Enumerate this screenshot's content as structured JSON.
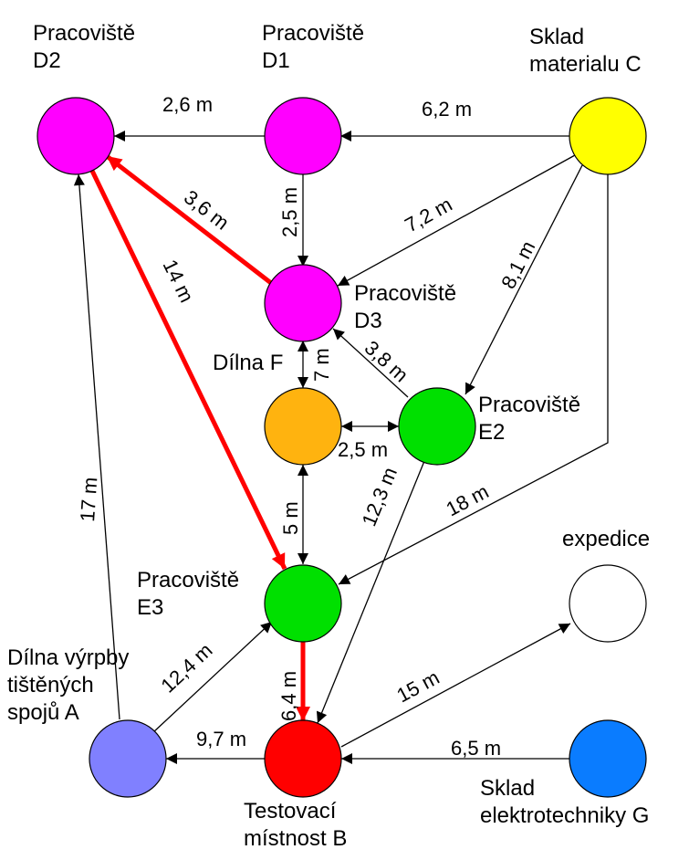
{
  "nodes": {
    "D2": {
      "lines": [
        "Pracoviště",
        "D2"
      ],
      "fill": "#ff00ff"
    },
    "D1": {
      "lines": [
        "Pracoviště",
        "D1"
      ],
      "fill": "#ff00ff"
    },
    "C": {
      "lines": [
        "Sklad",
        "materialu C"
      ],
      "fill": "#ffff00"
    },
    "D3": {
      "lines": [
        "Pracoviště",
        "D3"
      ],
      "fill": "#ff00ff"
    },
    "F": {
      "lines": [
        "Dílna F"
      ],
      "fill": "#ffb30f"
    },
    "E2": {
      "lines": [
        "Pracoviště",
        "E2"
      ],
      "fill": "#00e000"
    },
    "E3": {
      "lines": [
        "Pracoviště",
        "E3"
      ],
      "fill": "#00e000"
    },
    "EXP": {
      "lines": [
        "expedice"
      ],
      "fill": "#ffffff"
    },
    "A": {
      "lines": [
        "Dílna výrpby",
        "tištěných",
        "spojů A"
      ],
      "fill": "#8080ff"
    },
    "B": {
      "lines": [
        "Testovací",
        "místnost B"
      ],
      "fill": "#ff0000"
    },
    "G": {
      "lines": [
        "Sklad",
        "elektrotechniky G"
      ],
      "fill": "#0a7cff"
    }
  },
  "edges": [
    {
      "id": "d1-d2",
      "label": "2,6 m",
      "highlight": false
    },
    {
      "id": "c-d1",
      "label": "6,2 m",
      "highlight": false
    },
    {
      "id": "d1-d3",
      "label": "2,5 m",
      "highlight": false
    },
    {
      "id": "d3-d2",
      "label": "3,6 m",
      "highlight": true
    },
    {
      "id": "c-d3",
      "label": "7,2 m",
      "highlight": false
    },
    {
      "id": "c-e2",
      "label": "8,1 m",
      "highlight": false
    },
    {
      "id": "d2-e3",
      "label": "14 m",
      "highlight": true
    },
    {
      "id": "e2-d3",
      "label": "3,8 m",
      "highlight": false
    },
    {
      "id": "d3-f",
      "label": "7 m",
      "highlight": false
    },
    {
      "id": "f-e2",
      "label": "2,5 m",
      "highlight": false
    },
    {
      "id": "a-d2",
      "label": "17 m",
      "highlight": false
    },
    {
      "id": "f-e3",
      "label": "5 m",
      "highlight": false
    },
    {
      "id": "e2-b",
      "label": "12,3 m",
      "highlight": false
    },
    {
      "id": "c-e3",
      "label": "18 m",
      "highlight": false
    },
    {
      "id": "a-e3",
      "label": "12,4 m",
      "highlight": false
    },
    {
      "id": "e3-b",
      "label": "6,4 m",
      "highlight": true
    },
    {
      "id": "b-a",
      "label": "9,7 m",
      "highlight": false
    },
    {
      "id": "b-exp",
      "label": "15 m",
      "highlight": false
    },
    {
      "id": "g-b",
      "label": "6,5 m",
      "highlight": false
    }
  ],
  "colors": {
    "edge": "#000000",
    "highlight": "#ff0000",
    "node_outline": "#000000"
  }
}
